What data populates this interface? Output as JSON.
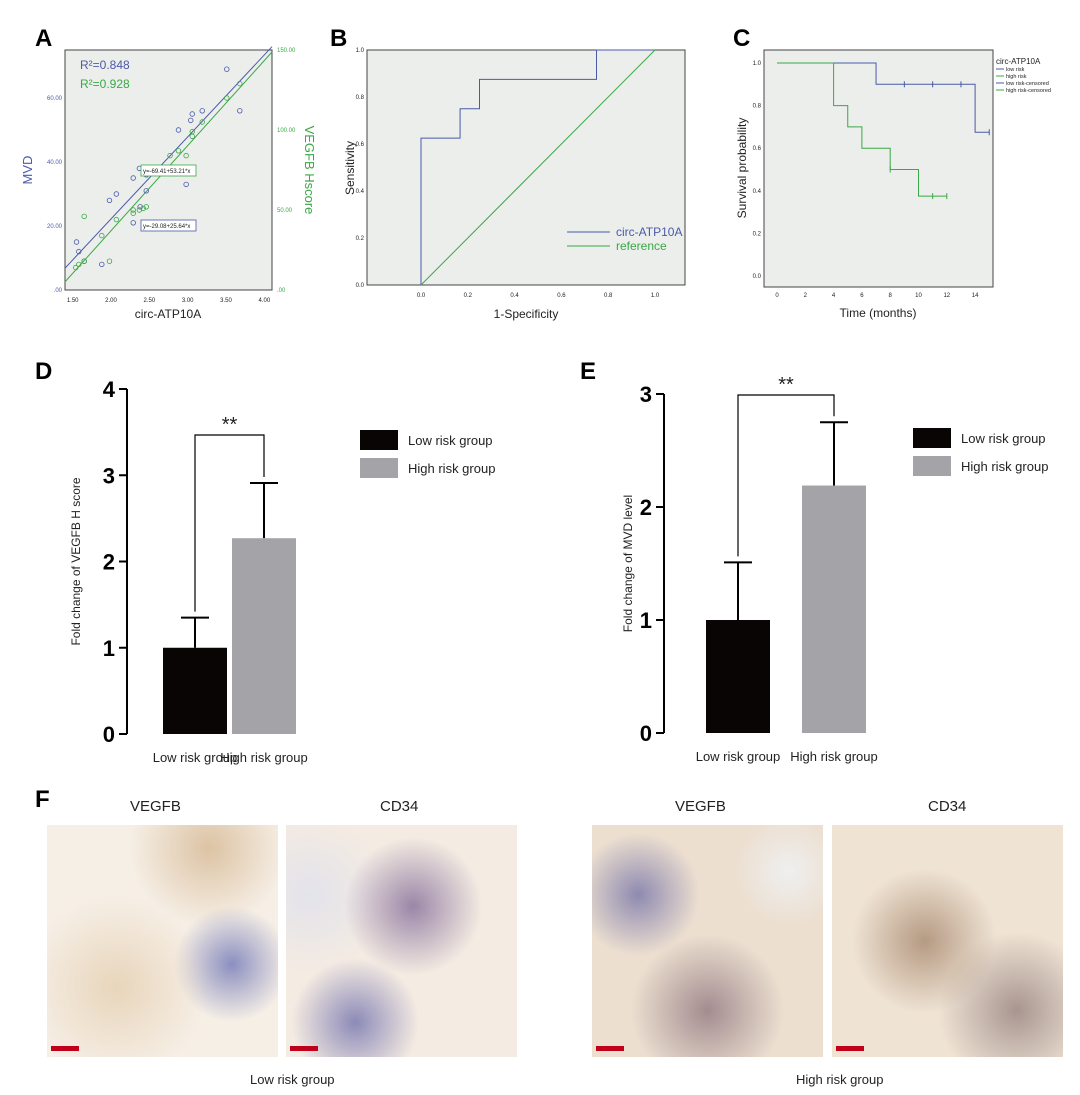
{
  "panels": [
    "A",
    "B",
    "C",
    "D",
    "E",
    "F"
  ],
  "chart_data": [
    {
      "type": "scatter",
      "panel": "A",
      "xlabel": "circ-ATP10A",
      "ylabel": "MVD",
      "ylabel_right": "VEGFB Hscore",
      "xlim": [
        1.4,
        4.1
      ],
      "ylim": [
        0,
        75
      ],
      "ylim_right": [
        0,
        150
      ],
      "xticks": [
        "1.50",
        "2.00",
        "2.50",
        "3.00",
        "3.50",
        "4.00"
      ],
      "yticks": [
        ".00",
        "20.00",
        "40.00",
        "60.00"
      ],
      "yticks_right": [
        ".00",
        "50.00",
        "100.00",
        "150.00"
      ],
      "r2_mvd": "R²=0.848",
      "r2_vegfb": "R²=0.928",
      "eq_vegfb": "y=-69.41+53.21*x",
      "eq_mvd": "y=-29.08+25.64*x",
      "colors": {
        "mvd": "#4a5aa8",
        "vegfb": "#3aa845"
      },
      "series": [
        {
          "name": "MVD",
          "x": [
            1.55,
            1.58,
            1.65,
            1.88,
            1.98,
            2.07,
            2.29,
            2.29,
            2.37,
            2.38,
            2.46,
            2.46,
            2.88,
            2.98,
            3.04,
            3.06,
            3.19,
            3.51,
            3.68
          ],
          "y": [
            15,
            12,
            9,
            8,
            28,
            30,
            35,
            21,
            38,
            26,
            36,
            31,
            50,
            33,
            53,
            55,
            56,
            69,
            56
          ]
        },
        {
          "name": "VEGFB Hscore",
          "x": [
            1.54,
            1.58,
            1.65,
            1.65,
            1.88,
            1.98,
            2.07,
            2.29,
            2.29,
            2.37,
            2.42,
            2.46,
            2.77,
            2.88,
            2.98,
            3.06,
            3.06,
            3.19,
            3.51,
            3.68
          ],
          "y": [
            14,
            16,
            18,
            46,
            34,
            18,
            44,
            48,
            50,
            50,
            51,
            52,
            84,
            87,
            84,
            96,
            99,
            105,
            120,
            129
          ]
        }
      ]
    },
    {
      "type": "line",
      "panel": "B",
      "xlabel": "1-Specificity",
      "ylabel": "Sensitivity",
      "xlim": [
        -0.23,
        1.0
      ],
      "ylim": [
        0,
        1
      ],
      "xticks": [
        "0.0",
        "0.2",
        "0.4",
        "0.6",
        "0.8",
        "1.0"
      ],
      "yticks": [
        "0.0",
        "0.2",
        "0.4",
        "0.6",
        "0.8",
        "1.0"
      ],
      "series": [
        {
          "name": "circ-ATP10A",
          "color": "#4a5aa8",
          "x": [
            0,
            0,
            0.167,
            0.167,
            0.25,
            0.25,
            0.75,
            0.75,
            1
          ],
          "y": [
            0,
            0.625,
            0.625,
            0.75,
            0.75,
            0.875,
            0.875,
            1,
            1
          ]
        },
        {
          "name": "reference",
          "color": "#3aa845",
          "x": [
            0,
            1
          ],
          "y": [
            0,
            1
          ]
        }
      ],
      "legend": "bottom-right"
    },
    {
      "type": "line",
      "panel": "C",
      "xlabel": "Time (months)",
      "ylabel": "Survival probability",
      "xlim": [
        -0.9,
        15.4
      ],
      "ylim": [
        -0.06,
        1.05
      ],
      "xticks": [
        "0",
        "2",
        "4",
        "6",
        "8",
        "10",
        "12",
        "14"
      ],
      "yticks": [
        "0.0",
        "0.2",
        "0.4",
        "0.6",
        "0.8",
        "1.0"
      ],
      "legend_title": "circ-ATP10A",
      "legend": [
        "low risk",
        "high risk",
        "low risk-censored",
        "high risk-censored"
      ],
      "series": [
        {
          "name": "low risk",
          "color": "#4a5aa8",
          "x": [
            0,
            7,
            7,
            14,
            14,
            15
          ],
          "y": [
            1,
            1,
            0.9,
            0.9,
            0.675,
            0.675
          ],
          "censored_x": [
            9,
            11,
            13,
            15
          ],
          "censored_y": [
            0.9,
            0.9,
            0.9,
            0.675
          ]
        },
        {
          "name": "high risk",
          "color": "#3aa845",
          "x": [
            0,
            4,
            4,
            5,
            5,
            6,
            6,
            8,
            8,
            10,
            10,
            12
          ],
          "y": [
            1,
            1,
            0.8,
            0.8,
            0.7,
            0.7,
            0.6,
            0.6,
            0.5,
            0.5,
            0.375,
            0.375
          ],
          "censored_x": [
            8,
            11,
            12
          ],
          "censored_y": [
            0.5,
            0.375,
            0.375
          ]
        }
      ]
    },
    {
      "type": "bar",
      "panel": "D",
      "ylabel": "Fold change of VEGFB H score",
      "categories": [
        "Low risk group",
        "High risk group"
      ],
      "values": [
        1.0,
        2.27
      ],
      "errors": [
        1.35,
        2.91
      ],
      "ylim": [
        0,
        4
      ],
      "yticks": [
        "0",
        "1",
        "2",
        "3",
        "4"
      ],
      "significance": "**",
      "colors": [
        "#0a0505",
        "#a3a3a8"
      ],
      "legend": [
        "Low risk group",
        "High risk group"
      ]
    },
    {
      "type": "bar",
      "panel": "E",
      "ylabel": "Fold change of MVD level",
      "categories": [
        "Low risk group",
        "High risk group"
      ],
      "values": [
        1.0,
        2.19
      ],
      "errors": [
        1.51,
        2.75
      ],
      "ylim": [
        0,
        3
      ],
      "yticks": [
        "0",
        "1",
        "2",
        "3"
      ],
      "significance": "**",
      "colors": [
        "#0a0505",
        "#a3a3a8"
      ],
      "legend": [
        "Low risk group",
        "High risk group"
      ]
    }
  ],
  "panel_f": {
    "stains": [
      "VEGFB",
      "CD34",
      "VEGFB",
      "CD34"
    ],
    "groups": [
      "Low risk group",
      "High risk group"
    ]
  }
}
